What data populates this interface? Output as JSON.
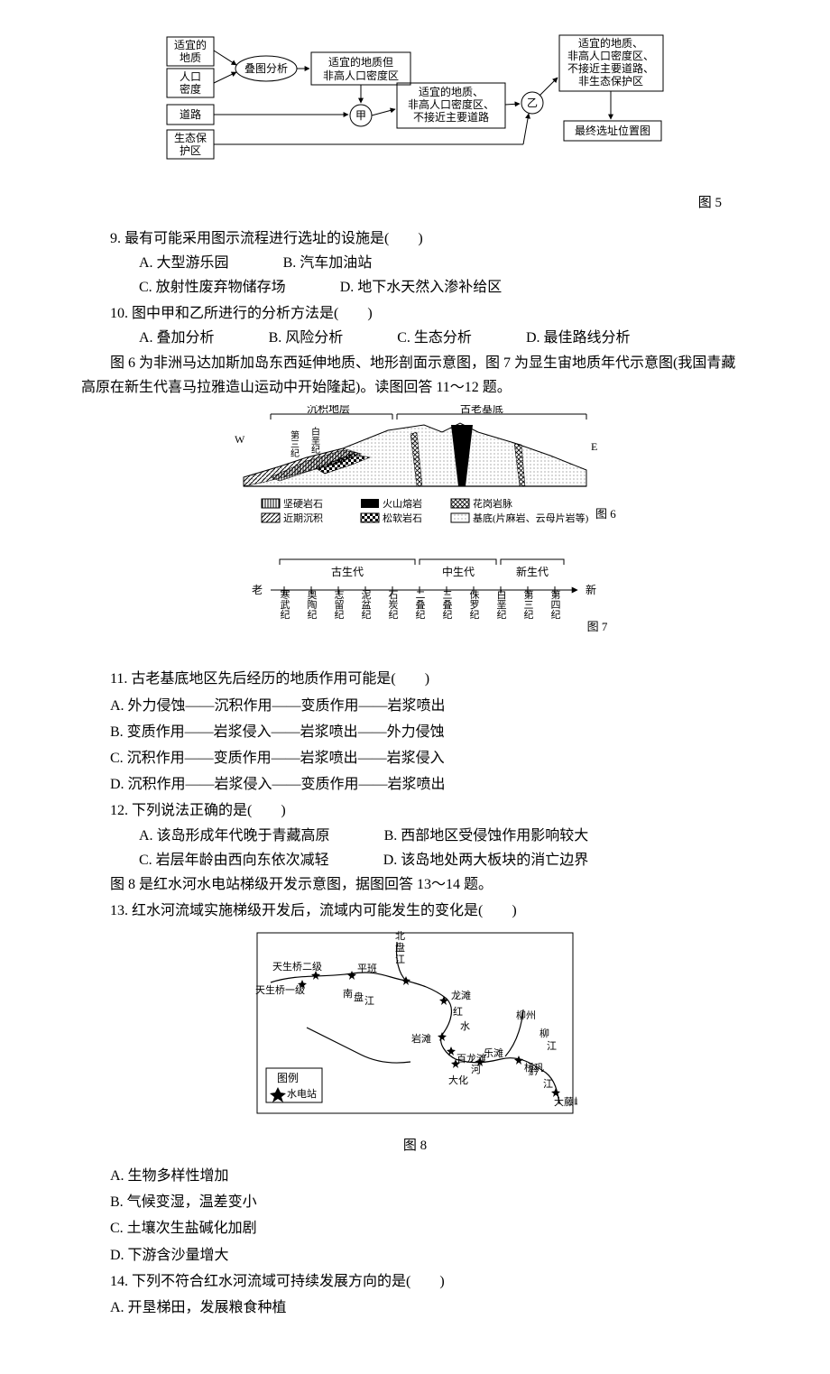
{
  "colors": {
    "text": "#000000",
    "bg": "#ffffff",
    "box_stroke": "#000000",
    "line": "#000000",
    "light_hatch": "#cfcfcf",
    "dark": "#202020",
    "water": "#ffffff"
  },
  "flow": {
    "type": "flowchart",
    "label": "图 5",
    "boxes": {
      "b1": "适宜的\n地质",
      "b2": "人口\n密度",
      "b3": "道路",
      "b4": "生态保\n护区",
      "c1": "叠图分析",
      "m1": "适宜的地质但\n非高人口密度区",
      "jia": "甲",
      "m2": "适宜的地质、\n非高人口密度区、\n不接近主要道路",
      "yi": "乙",
      "r1": "适宜的地质、\n非高人口密度区、\n不接近主要道路、\n非生态保护区",
      "r2": "最终选址位置图"
    },
    "box_stroke": "#000000",
    "font_size": 13
  },
  "q9": {
    "stem": "9. 最有可能采用图示流程进行选址的设施是(　　)",
    "A": "A. 大型游乐园",
    "B": "B. 汽车加油站",
    "C": "C. 放射性废弃物储存场",
    "D": "D. 地下水天然入渗补给区"
  },
  "q10": {
    "stem": "10. 图中甲和乙所进行的分析方法是(　　)",
    "A": "A. 叠加分析",
    "B": "B. 风险分析",
    "C": "C. 生态分析",
    "D": "D. 最佳路线分析"
  },
  "intro_6_7": "图 6 为非洲马达加斯加岛东西延伸地质、地形剖面示意图，图 7 为显生宙地质年代示意图(我国青藏高原在新生代喜马拉雅造山运动中开始隆起)。读图回答 11～12 题。",
  "fig6": {
    "type": "cross-section-diagram",
    "label_top_left": "沉积地层",
    "label_top_right": "古老基底",
    "W": "W",
    "E": "E",
    "mid_labels": [
      "第三纪",
      "白垩纪"
    ],
    "legend": [
      {
        "key": "坚硬岩石",
        "pattern": "hatch_vertical"
      },
      {
        "key": "近期沉积",
        "pattern": "hatch_diag"
      },
      {
        "key": "火山熔岩",
        "pattern": "solid_black"
      },
      {
        "key": "松软岩石",
        "pattern": "checker"
      },
      {
        "key": "花岗岩脉",
        "pattern": "cross_hatch"
      },
      {
        "key": "基底(片麻岩、云母片岩等)",
        "pattern": "dots"
      }
    ],
    "label": "图 6"
  },
  "fig7": {
    "type": "timeline",
    "eras": [
      "古生代",
      "中生代",
      "新生代"
    ],
    "old": "老",
    "new": "新",
    "periods": [
      "寒武纪",
      "奥陶纪",
      "志留纪",
      "泥盆纪",
      "石炭纪",
      "二叠纪",
      "三叠纪",
      "侏罗纪",
      "白垩纪",
      "第三纪",
      "第四纪"
    ],
    "label": "图 7"
  },
  "q11": {
    "stem": "11. 古老基底地区先后经历的地质作用可能是(　　)",
    "A": "A. 外力侵蚀——沉积作用——变质作用——岩浆喷出",
    "B": "B. 变质作用——岩浆侵入——岩浆喷出——外力侵蚀",
    "C": "C. 沉积作用——变质作用——岩浆喷出——岩浆侵入",
    "D": "D. 沉积作用——岩浆侵入——变质作用——岩浆喷出"
  },
  "q12": {
    "stem": "12. 下列说法正确的是(　　)",
    "A": "A. 该岛形成年代晚于青藏高原",
    "B": "B. 西部地区受侵蚀作用影响较大",
    "C": "C. 岩层年龄由西向东依次减轻",
    "D": "D. 该岛地处两大板块的消亡边界"
  },
  "intro_8": "图 8 是红水河水电站梯级开发示意图，据图回答 13～14 题。",
  "q13_stem": "13. 红水河流域实施梯级开发后，流域内可能发生的变化是(　　)",
  "fig8": {
    "type": "map",
    "label": "图 8",
    "legend_title": "图例",
    "legend_item": "水电站",
    "places": [
      "天生桥一级",
      "天生桥二级",
      "平班",
      "南盘江",
      "北盘江",
      "龙滩",
      "红",
      "岩滩",
      "百龙滩",
      "乐滩",
      "水",
      "河",
      "大化",
      "桥巩",
      "柳州",
      "柳江",
      "黔",
      "江",
      "大藤峡"
    ]
  },
  "q13": {
    "A": "A. 生物多样性增加",
    "B": "B. 气候变湿，温差变小",
    "C": "C. 土壤次生盐碱化加剧",
    "D": "D. 下游含沙量增大"
  },
  "q14": {
    "stem": "14. 下列不符合红水河流域可持续发展方向的是(　　)",
    "A": "A. 开垦梯田，发展粮食种植"
  }
}
